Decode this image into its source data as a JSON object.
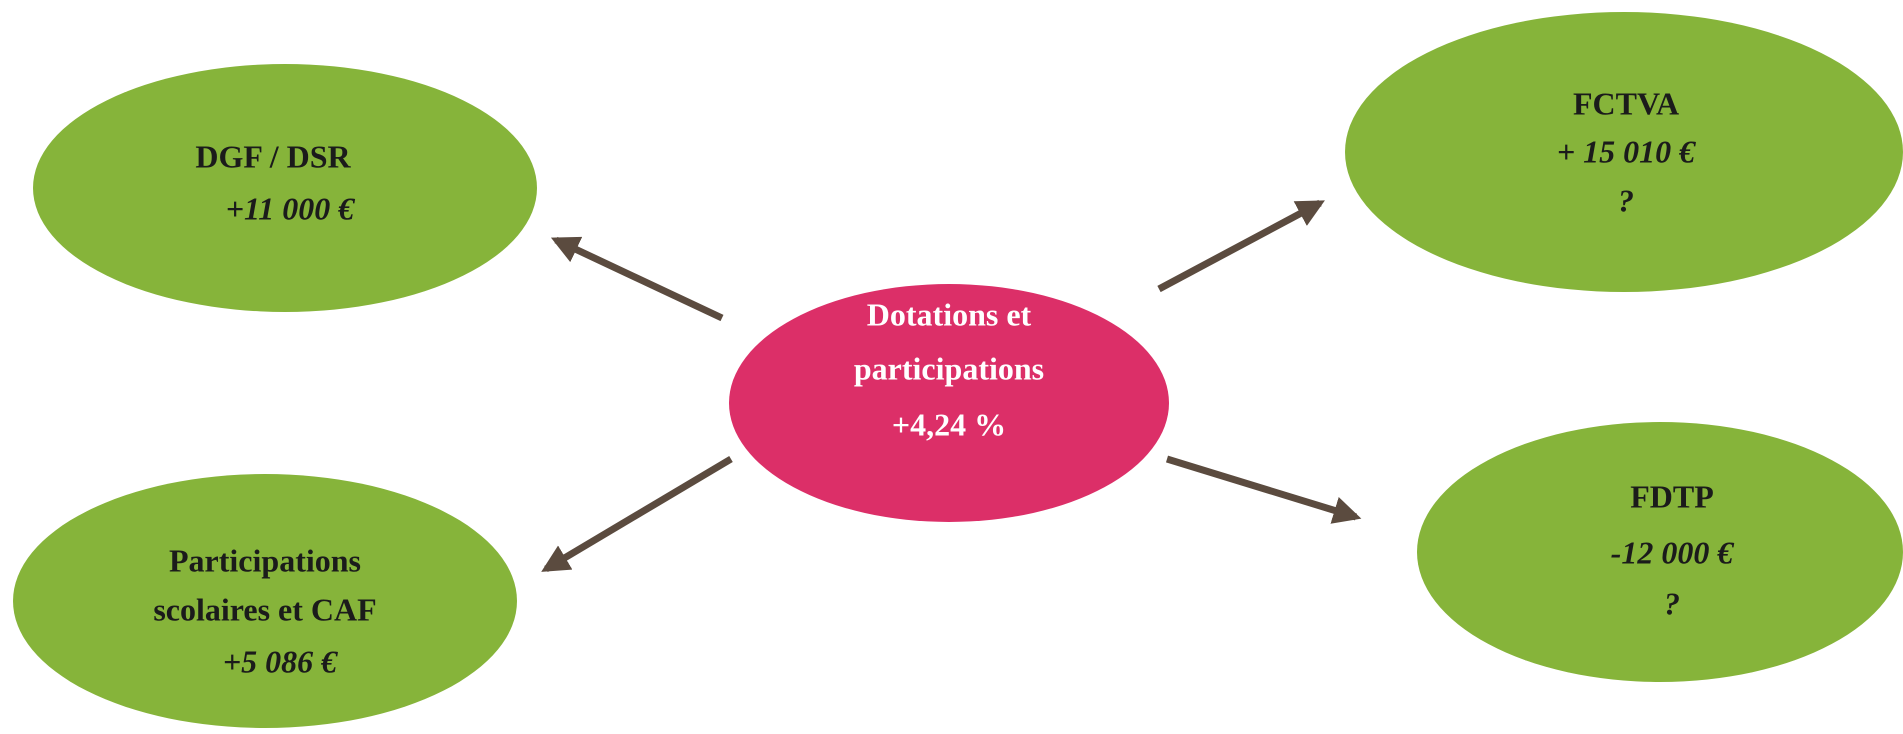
{
  "nodes": [
    {
      "lines": [
        "Dotations et",
        "participations",
        "+4,24 %"
      ]
    },
    {
      "title": "DGF / DSR",
      "value": "+11 000 €"
    },
    {
      "title": "FCTVA",
      "value": "+ 15 010 €",
      "note": "?"
    },
    {
      "lines": [
        "Participations",
        "scolaires et CAF"
      ],
      "value": "+5 086 €"
    },
    {
      "title": "FDTP",
      "value": "-12 000 €",
      "note": "?"
    }
  ]
}
